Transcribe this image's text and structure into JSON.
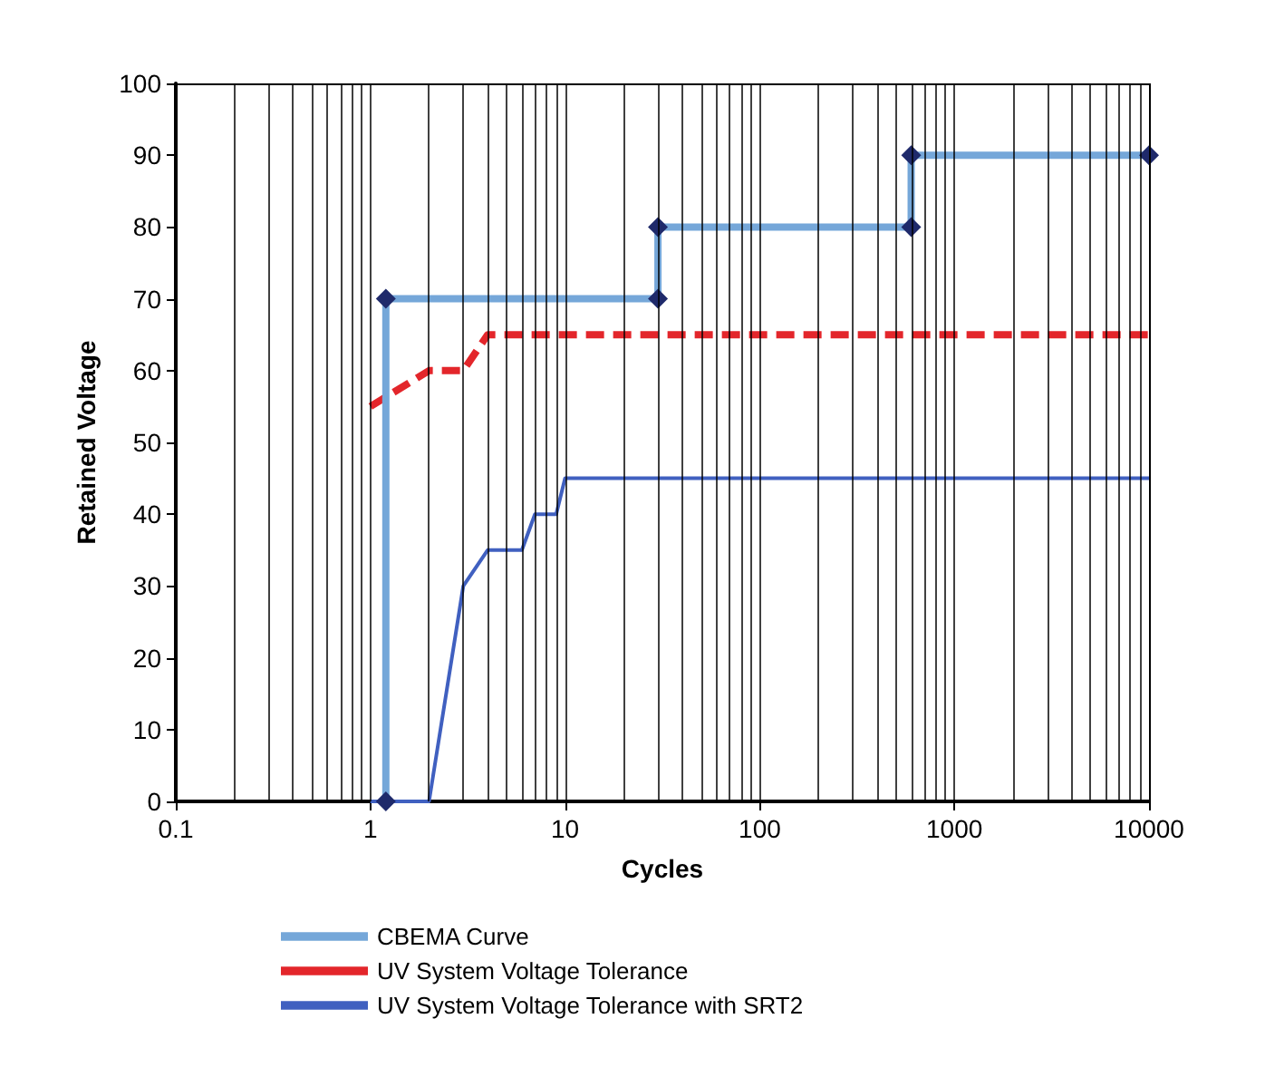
{
  "chart_data": {
    "type": "line",
    "xlabel": "Cycles",
    "ylabel": "Retained Voltage",
    "log": "x",
    "xlim": [
      0.1,
      10000
    ],
    "xticks": [
      0.1,
      1,
      10,
      100,
      1000,
      10000
    ],
    "ylim": [
      0,
      100
    ],
    "yticks": [
      0,
      10,
      20,
      30,
      40,
      50,
      60,
      70,
      80,
      90,
      100
    ],
    "grid": "x",
    "legend": "bottom",
    "series": [
      {
        "name": "CBEMA Curve",
        "color": "#75a7d9",
        "marker": "diamond",
        "line_style": "solid",
        "x": [
          1.2,
          1.2,
          30,
          30,
          600,
          600,
          10000
        ],
        "values": [
          0,
          70,
          70,
          80,
          80,
          90,
          90
        ]
      },
      {
        "name": "UV System Voltage Tolerance",
        "color": "#e3262b",
        "marker": "none",
        "line_style": "dashed",
        "x": [
          1,
          2,
          3,
          4,
          10000
        ],
        "values": [
          55,
          60,
          60,
          65,
          65
        ]
      },
      {
        "name": "UV System Voltage Tolerance with SRT2",
        "color": "#4060c0",
        "marker": "none",
        "line_style": "solid",
        "x": [
          1,
          2,
          3,
          4,
          6,
          7,
          9,
          10,
          10000
        ],
        "values": [
          0,
          0,
          30,
          35,
          35,
          40,
          40,
          45,
          45
        ]
      }
    ]
  }
}
